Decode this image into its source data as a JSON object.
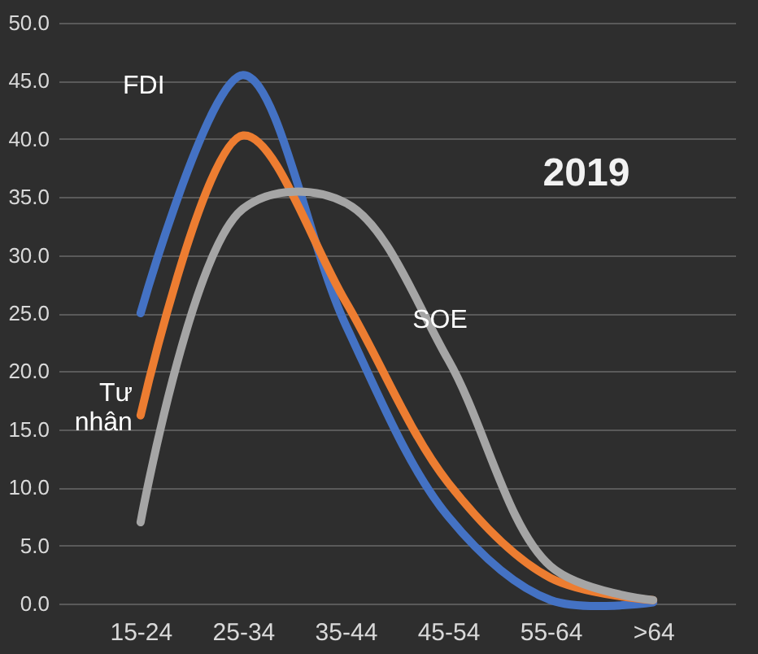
{
  "chart_data": {
    "type": "line",
    "annotations": [
      "2019"
    ],
    "categories": [
      "15-24",
      "25-34",
      "35-44",
      "45-54",
      "55-64",
      ">64"
    ],
    "series": [
      {
        "name": "FDI",
        "color": "#4472c4",
        "values": [
          25.0,
          45.5,
          24.0,
          7.5,
          0.3,
          0.1
        ]
      },
      {
        "name": "Tư nhân",
        "color": "#ed7d31",
        "values": [
          16.2,
          40.3,
          26.0,
          10.4,
          2.2,
          0.3
        ]
      },
      {
        "name": "SOE",
        "color": "#a5a5a5",
        "values": [
          7.0,
          34.0,
          34.5,
          21.0,
          3.2,
          0.3
        ]
      }
    ],
    "ylim": [
      0,
      50
    ],
    "yticks": [
      {
        "value": 0,
        "label": "0.0"
      },
      {
        "value": 5,
        "label": "5.0"
      },
      {
        "value": 10,
        "label": "10.0"
      },
      {
        "value": 15,
        "label": "15.0"
      },
      {
        "value": 20,
        "label": "20.0"
      },
      {
        "value": 25,
        "label": "25.0"
      },
      {
        "value": 30,
        "label": "30.0"
      },
      {
        "value": 35,
        "label": "35.0"
      },
      {
        "value": 40,
        "label": "40.0"
      },
      {
        "value": 45,
        "label": "45.0"
      },
      {
        "value": 50,
        "label": "50.0"
      }
    ],
    "grid": "y",
    "marker": "none",
    "line_style": "solid"
  }
}
